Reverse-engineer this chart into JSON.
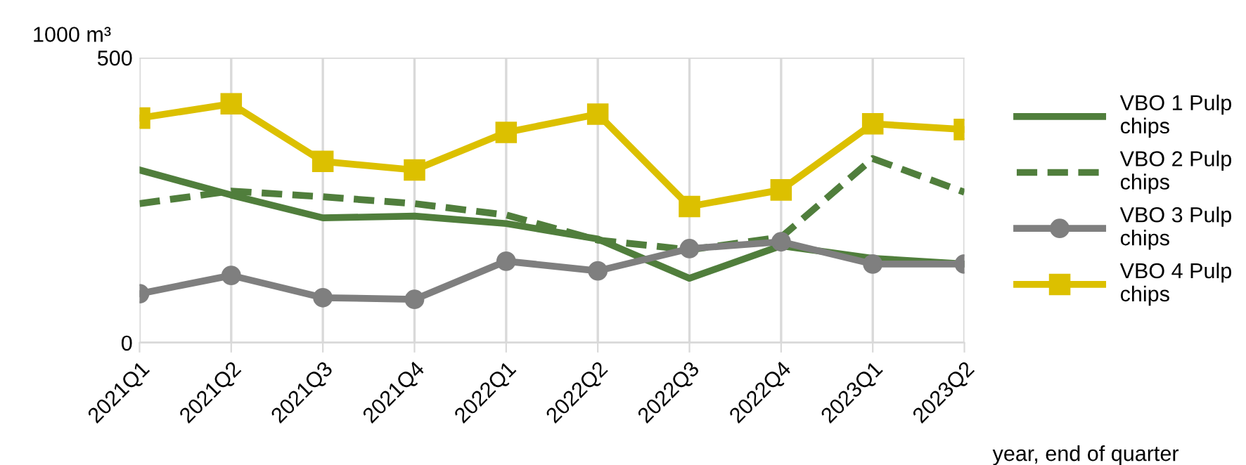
{
  "chart_data": {
    "type": "line",
    "ylabel": "1000 m³",
    "xlabel": "year, end of quarter",
    "categories": [
      "2021Q1",
      "2021Q2",
      "2021Q3",
      "2021Q4",
      "2022Q1",
      "2022Q2",
      "2022Q3",
      "2022Q4",
      "2023Q1",
      "2023Q2"
    ],
    "series": [
      {
        "name": "VBO 1 Pulp chips",
        "color": "#507e3c",
        "line_style": "solid",
        "marker": "none",
        "values": [
          303,
          259,
          219,
          222,
          209,
          182,
          113,
          170,
          148,
          138
        ]
      },
      {
        "name": "VBO 2 Pulp chips",
        "color": "#507e3c",
        "line_style": "dashed",
        "marker": "none",
        "values": [
          244,
          266,
          256,
          244,
          224,
          180,
          163,
          185,
          323,
          264
        ]
      },
      {
        "name": "VBO 3 Pulp chips",
        "color": "#7f7f7f",
        "line_style": "solid",
        "marker": "circle",
        "values": [
          86,
          118,
          79,
          76,
          143,
          126,
          165,
          177,
          138,
          138
        ]
      },
      {
        "name": "VBO 4 Pulp chips",
        "color": "#dcc000",
        "line_style": "solid",
        "marker": "square",
        "values": [
          394,
          419,
          318,
          303,
          369,
          401,
          239,
          268,
          384,
          374
        ]
      }
    ],
    "ylim": [
      0,
      500
    ],
    "yticks": [
      0,
      500
    ],
    "grid": true,
    "legend": "right"
  }
}
